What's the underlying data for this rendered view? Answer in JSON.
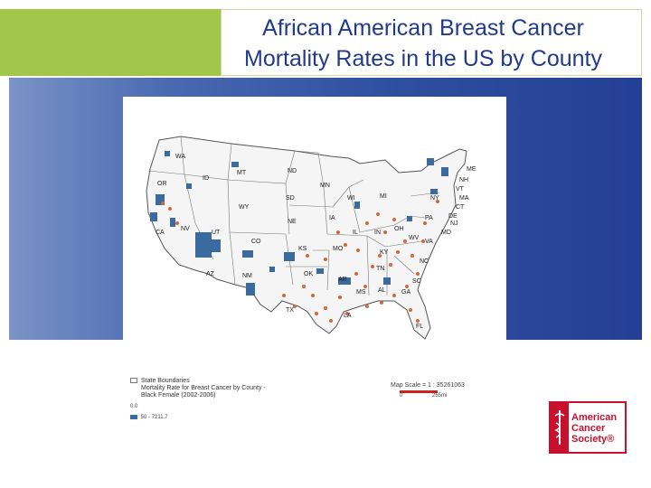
{
  "slide": {
    "title_line1": "African American Breast Cancer",
    "title_line2": "Mortality Rates in the US by County"
  },
  "map": {
    "states": [
      "WA",
      "OR",
      "ID",
      "MT",
      "ND",
      "MN",
      "WI",
      "MI",
      "ME",
      "NH",
      "VT",
      "MA",
      "CT",
      "NY",
      "PA",
      "NJ",
      "MD",
      "VA",
      "WV",
      "OH",
      "IN",
      "IL",
      "IA",
      "NE",
      "SD",
      "WY",
      "UT",
      "NV",
      "CA",
      "CO",
      "KS",
      "MO",
      "KY",
      "TN",
      "NC",
      "SC",
      "GA",
      "AL",
      "MS",
      "AR",
      "LA",
      "OK",
      "TX",
      "NM",
      "AZ",
      "FL",
      "DE"
    ],
    "colors": {
      "low": "#e8e8e8",
      "high_blue": "#3a6a9e",
      "orange_dots": "#d2673b"
    }
  },
  "legend": {
    "title1": "State Boundaries",
    "title2": "Mortality Rate for Breast Cancer by County -",
    "title3": "Black Female (2002-2006)",
    "bin1": "0.0",
    "bin2": "50 - 7211.7"
  },
  "scale": {
    "label": "Map Scale = 1 : 35261063",
    "tick0": "0",
    "tick1": "255mi"
  },
  "logo": {
    "line1": "American",
    "line2": "Cancer",
    "line3": "Society®"
  }
}
